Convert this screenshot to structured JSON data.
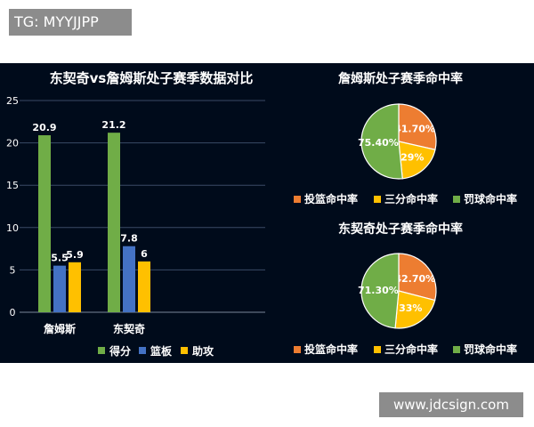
{
  "watermarks": {
    "top_left": "TG: MYYJJPP",
    "bottom_right": "www.jdcsign.com"
  },
  "chart_data": [
    {
      "type": "bar",
      "title": "东契奇vs詹姆斯处子赛季数据对比",
      "categories": [
        "詹姆斯",
        "东契奇"
      ],
      "series": [
        {
          "name": "得分",
          "values": [
            20.9,
            21.2
          ],
          "labels": [
            "20.9",
            "21.2"
          ],
          "color": "#70ad47"
        },
        {
          "name": "篮板",
          "values": [
            5.5,
            7.8
          ],
          "labels": [
            "5.5",
            "7.8"
          ],
          "color": "#4472c4"
        },
        {
          "name": "助攻",
          "values": [
            5.9,
            6.0
          ],
          "labels": [
            "5.9",
            "6"
          ],
          "color": "#ffc000"
        }
      ],
      "ylim": [
        0,
        25
      ],
      "yticks": [
        "0",
        "5",
        "10",
        "15",
        "20",
        "25"
      ],
      "grid": true,
      "legend": "bottom"
    },
    {
      "type": "pie",
      "title": "詹姆斯处子赛季命中率",
      "slices": [
        {
          "name": "投篮命中率",
          "value": 41.7,
          "label": "41.70%",
          "color": "#ed7d31"
        },
        {
          "name": "三分命中率",
          "value": 29,
          "label": "29%",
          "color": "#ffc000"
        },
        {
          "name": "罚球命中率",
          "value": 75.4,
          "label": "75.40%",
          "color": "#70ad47"
        }
      ],
      "legend": "bottom"
    },
    {
      "type": "pie",
      "title": "东契奇处子赛季命中率",
      "slices": [
        {
          "name": "投篮命中率",
          "value": 42.7,
          "label": "42.70%",
          "color": "#ed7d31"
        },
        {
          "name": "三分命中率",
          "value": 33,
          "label": "33%",
          "color": "#ffc000"
        },
        {
          "name": "罚球命中率",
          "value": 71.3,
          "label": "71.30%",
          "color": "#70ad47"
        }
      ],
      "legend": "bottom"
    }
  ],
  "colors": {
    "background": "#000b1b",
    "text": "#ffffff",
    "grid": "#3a4a66"
  }
}
